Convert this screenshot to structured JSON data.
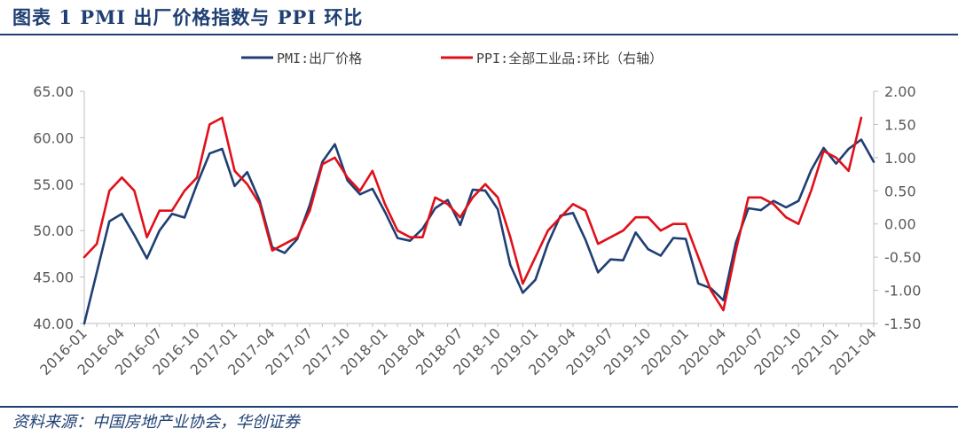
{
  "figure": {
    "title": "图表 1   PMI 出厂价格指数与 PPI 环比",
    "source": "资料来源：中国房地产业协会，华创证券"
  },
  "colors": {
    "pmi": "#1f3f73",
    "ppi": "#e0101a",
    "frame": "#1f3f73",
    "axis": "#bfbfbf",
    "text": "#595959"
  },
  "chart_data": {
    "type": "line",
    "title": "",
    "grid": false,
    "legend_position": "top-center",
    "x": [
      "2016-01",
      "2016-02",
      "2016-03",
      "2016-04",
      "2016-05",
      "2016-06",
      "2016-07",
      "2016-08",
      "2016-09",
      "2016-10",
      "2016-11",
      "2016-12",
      "2017-01",
      "2017-02",
      "2017-03",
      "2017-04",
      "2017-05",
      "2017-06",
      "2017-07",
      "2017-08",
      "2017-09",
      "2017-10",
      "2017-11",
      "2017-12",
      "2018-01",
      "2018-02",
      "2018-03",
      "2018-04",
      "2018-05",
      "2018-06",
      "2018-07",
      "2018-08",
      "2018-09",
      "2018-10",
      "2018-11",
      "2018-12",
      "2019-01",
      "2019-02",
      "2019-03",
      "2019-04",
      "2019-05",
      "2019-06",
      "2019-07",
      "2019-08",
      "2019-09",
      "2019-10",
      "2019-11",
      "2019-12",
      "2020-01",
      "2020-02",
      "2020-03",
      "2020-04",
      "2020-05",
      "2020-06",
      "2020-07",
      "2020-08",
      "2020-09",
      "2020-10",
      "2020-11",
      "2020-12",
      "2021-01",
      "2021-02",
      "2021-03",
      "2021-04"
    ],
    "x_tick_labels": [
      "2016-01",
      "2016-04",
      "2016-07",
      "2016-10",
      "2017-01",
      "2017-04",
      "2017-07",
      "2017-10",
      "2018-01",
      "2018-04",
      "2018-07",
      "2018-10",
      "2019-01",
      "2019-04",
      "2019-07",
      "2019-10",
      "2020-01",
      "2020-04",
      "2020-07",
      "2020-10",
      "2021-01",
      "2021-04"
    ],
    "y_left": {
      "ylim": [
        40,
        65
      ],
      "ticks": [
        "40.00",
        "45.00",
        "50.00",
        "55.00",
        "60.00",
        "65.00"
      ]
    },
    "y_right": {
      "ylim": [
        -1.5,
        2.0
      ],
      "ticks": [
        "-1.50",
        "-1.00",
        "-0.50",
        "0.00",
        "0.50",
        "1.00",
        "1.50",
        "2.00"
      ]
    },
    "series": [
      {
        "name": "PMI:出厂价格",
        "axis": "left",
        "values": [
          40.0,
          45.5,
          51.0,
          51.8,
          49.5,
          47.0,
          50.0,
          51.8,
          51.4,
          55.0,
          58.3,
          58.8,
          54.8,
          56.3,
          53.2,
          48.2,
          47.6,
          49.1,
          52.8,
          57.4,
          59.3,
          55.4,
          53.9,
          54.5,
          52.0,
          49.2,
          48.9,
          50.2,
          52.4,
          53.3,
          50.6,
          54.4,
          54.3,
          52.3,
          46.3,
          43.3,
          44.7,
          48.6,
          51.6,
          51.9,
          49.0,
          45.5,
          46.9,
          46.8,
          49.8,
          48.0,
          47.3,
          49.2,
          49.1,
          44.3,
          43.8,
          42.5,
          48.7,
          52.4,
          52.2,
          53.2,
          52.5,
          53.2,
          56.5,
          58.9,
          57.2,
          58.8,
          59.8,
          57.4
        ]
      },
      {
        "name": "PPI:全部工业品:环比（右轴）",
        "axis": "right",
        "values": [
          -0.5,
          -0.3,
          0.5,
          0.7,
          0.5,
          -0.2,
          0.2,
          0.2,
          0.5,
          0.7,
          1.5,
          1.6,
          0.8,
          0.6,
          0.3,
          -0.4,
          -0.3,
          -0.2,
          0.2,
          0.9,
          1.0,
          0.7,
          0.5,
          0.8,
          0.3,
          -0.1,
          -0.2,
          -0.2,
          0.4,
          0.3,
          0.1,
          0.4,
          0.6,
          0.4,
          -0.2,
          -0.9,
          -0.5,
          -0.1,
          0.1,
          0.3,
          0.2,
          -0.3,
          -0.2,
          -0.1,
          0.1,
          0.1,
          -0.1,
          0.0,
          0.0,
          -0.5,
          -1.0,
          -1.3,
          -0.4,
          0.4,
          0.4,
          0.3,
          0.1,
          0.0,
          0.5,
          1.1,
          1.0,
          0.8,
          1.6,
          null
        ]
      }
    ]
  }
}
